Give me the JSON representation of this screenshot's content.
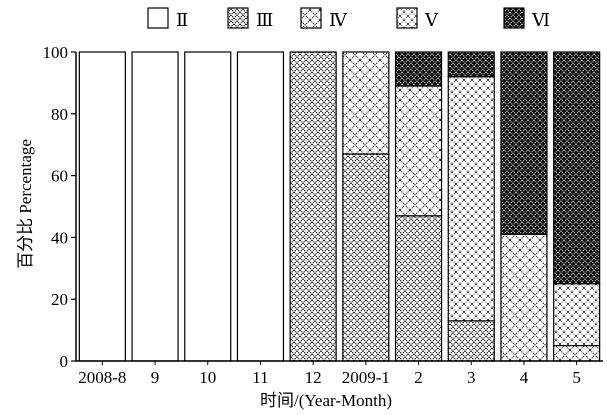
{
  "chart_data": {
    "type": "bar",
    "stacked": true,
    "title": "",
    "xlabel": "时间/(Year-Month)",
    "ylabel": "百分比 Percentage",
    "ylim": [
      0,
      100
    ],
    "yticks": [
      0,
      20,
      40,
      60,
      80,
      100
    ],
    "grid": false,
    "legend_position": "top",
    "categories": [
      "2008-8",
      "9",
      "10",
      "11",
      "12",
      "2009-1",
      "2",
      "3",
      "4",
      "5"
    ],
    "series": [
      {
        "name": "Ⅱ",
        "pattern": "blank",
        "values": [
          100,
          100,
          100,
          100,
          0,
          0,
          0,
          0,
          0,
          0
        ]
      },
      {
        "name": "Ⅲ",
        "pattern": "dense-cross",
        "values": [
          0,
          0,
          0,
          0,
          100,
          67,
          47,
          13,
          0,
          0
        ]
      },
      {
        "name": "Ⅳ",
        "pattern": "cross",
        "values": [
          0,
          0,
          0,
          0,
          0,
          33,
          42,
          0,
          41,
          5
        ]
      },
      {
        "name": "Ⅴ",
        "pattern": "dotted-cross",
        "values": [
          0,
          0,
          0,
          0,
          0,
          0,
          0,
          79,
          0,
          20
        ]
      },
      {
        "name": "Ⅵ",
        "pattern": "black-cross",
        "values": [
          0,
          0,
          0,
          0,
          0,
          0,
          11,
          8,
          59,
          75
        ]
      }
    ]
  }
}
